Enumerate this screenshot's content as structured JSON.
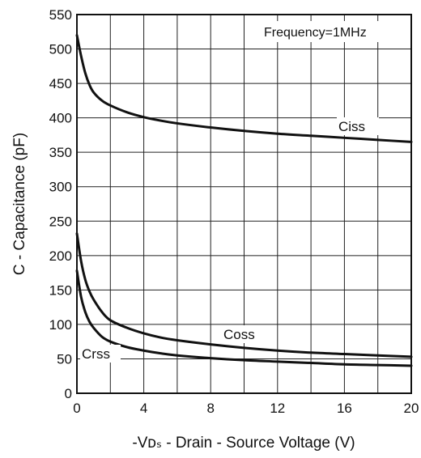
{
  "chart_data": {
    "type": "line",
    "xlabel": "-Vᴅₛ - Drain - Source Voltage (V)",
    "ylabel": "C - Capacitance (pF)",
    "annotation": "Frequency=1MHz",
    "xlim": [
      0,
      20
    ],
    "ylim": [
      0,
      550
    ],
    "x_ticks": [
      0,
      4,
      8,
      12,
      16,
      20
    ],
    "y_ticks": [
      0,
      50,
      100,
      150,
      200,
      250,
      300,
      350,
      400,
      450,
      500,
      550
    ],
    "grid": true,
    "series": [
      {
        "name": "Ciss",
        "x": [
          0,
          0.25,
          0.5,
          0.75,
          1,
          1.5,
          2,
          3,
          4,
          5,
          6,
          8,
          10,
          12,
          14,
          16,
          18,
          20
        ],
        "y": [
          520,
          490,
          465,
          448,
          437,
          425,
          418,
          408,
          401,
          396,
          392,
          386,
          381,
          377,
          374,
          371,
          368,
          365
        ]
      },
      {
        "name": "Coss",
        "x": [
          0,
          0.25,
          0.5,
          0.75,
          1,
          1.5,
          2,
          3,
          4,
          5,
          6,
          8,
          10,
          12,
          14,
          16,
          18,
          20
        ],
        "y": [
          232,
          192,
          165,
          148,
          136,
          118,
          106,
          95,
          87,
          81,
          77,
          71,
          66,
          62,
          59,
          57,
          55,
          53
        ]
      },
      {
        "name": "Crss",
        "x": [
          0,
          0.25,
          0.5,
          0.75,
          1,
          1.5,
          2,
          3,
          4,
          5,
          6,
          8,
          10,
          12,
          14,
          16,
          18,
          20
        ],
        "y": [
          178,
          140,
          118,
          104,
          95,
          82,
          75,
          67,
          62,
          58,
          55,
          51,
          48,
          46,
          44,
          42,
          41,
          40
        ]
      }
    ]
  }
}
